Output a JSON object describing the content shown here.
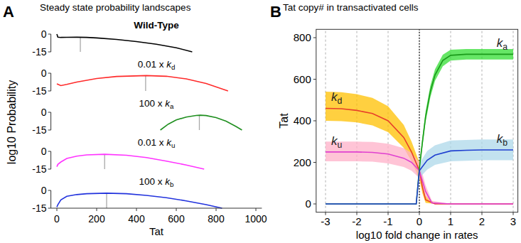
{
  "chart_data": [
    {
      "type": "line",
      "panel": "A",
      "title": "Steady state probability landscapes",
      "x_label": "Tat",
      "y_label": "log10 Probability",
      "xlim": [
        -30,
        1030
      ],
      "xticks": [
        0,
        200,
        400,
        600,
        800,
        1000
      ],
      "ylim": [
        -15,
        0
      ],
      "yticks": [
        -15,
        0
      ],
      "series": [
        {
          "name": "Wild-Type",
          "color": "#000000",
          "x": [
            0,
            5,
            20,
            50,
            100,
            150,
            200,
            300,
            400,
            500,
            600,
            680
          ],
          "values": [
            0,
            -2.5,
            -2.8,
            -2.7,
            -2.6,
            -2.8,
            -3.2,
            -4.5,
            -6.3,
            -8.6,
            -11.5,
            -15
          ],
          "mean": 118
        },
        {
          "name": "0.01 x kd",
          "color": "#ff2a2a",
          "x": [
            0,
            20,
            50,
            100,
            200,
            300,
            450,
            550,
            650,
            750,
            860
          ],
          "values": [
            -9,
            -10.5,
            -9.5,
            -7.5,
            -4.5,
            -2.8,
            -2,
            -2.6,
            -4.8,
            -8.7,
            -15
          ],
          "mean": 446
        },
        {
          "name": "100 x ka",
          "color": "#1f8f1f",
          "x": [
            520,
            560,
            600,
            650,
            700,
            720,
            750,
            800,
            850,
            900,
            930
          ],
          "values": [
            -15,
            -10,
            -6.5,
            -4,
            -2.7,
            -2.5,
            -2.8,
            -4.5,
            -7.5,
            -12,
            -15
          ],
          "mean": 716
        },
        {
          "name": "0.01 x ku",
          "color": "#ff33ff",
          "x": [
            0,
            5,
            20,
            50,
            100,
            150,
            240,
            350,
            450,
            550,
            650,
            740
          ],
          "values": [
            -13,
            -11,
            -9,
            -6,
            -4,
            -3,
            -2.5,
            -3.3,
            -5.3,
            -8.2,
            -11.5,
            -15
          ],
          "mean": 240
        },
        {
          "name": "100 x kb",
          "color": "#2233dd",
          "x": [
            0,
            5,
            20,
            50,
            100,
            150,
            250,
            350,
            450,
            550,
            650,
            750,
            830
          ],
          "values": [
            -14,
            -12,
            -8,
            -5,
            -3.5,
            -2.8,
            -2.3,
            -2.8,
            -4.2,
            -6.2,
            -8.8,
            -12,
            -15
          ],
          "mean": 250
        }
      ]
    },
    {
      "type": "line",
      "panel": "B",
      "title": "Tat copy# in transactivated cells",
      "x_label": "log10 fold change in rates",
      "y_label": "Tat",
      "xlim": [
        -3.3,
        3.15
      ],
      "xticks": [
        -3,
        -2,
        -1,
        0,
        1,
        2,
        3
      ],
      "ylim": [
        -40,
        840
      ],
      "yticks": [
        0,
        200,
        400,
        600,
        800
      ],
      "grid": true,
      "series": [
        {
          "name": "kd",
          "color": "#e8402a",
          "x": [
            -3,
            -2.5,
            -2,
            -1.5,
            -1,
            -0.5,
            -0.25,
            0,
            0.1,
            0.2,
            0.5,
            1,
            2,
            3
          ],
          "values": [
            460,
            458,
            450,
            435,
            400,
            320,
            250,
            160,
            80,
            20,
            0,
            0,
            0,
            0
          ],
          "lower": [
            400,
            398,
            392,
            378,
            345,
            270,
            205,
            120,
            50,
            5,
            0,
            0,
            0,
            0
          ],
          "upper": [
            540,
            538,
            528,
            510,
            470,
            380,
            300,
            200,
            110,
            40,
            0,
            0,
            0,
            0
          ]
        },
        {
          "name": "ku",
          "color": "#e040d0",
          "x": [
            -3,
            -2.5,
            -2,
            -1.5,
            -1,
            -0.5,
            -0.25,
            0,
            0.1,
            0.2,
            0.4,
            1,
            2,
            3
          ],
          "values": [
            250,
            250,
            250,
            248,
            240,
            220,
            200,
            160,
            110,
            60,
            5,
            0,
            0,
            0
          ],
          "lower": [
            205,
            205,
            205,
            203,
            195,
            178,
            160,
            125,
            80,
            35,
            0,
            0,
            0,
            0
          ],
          "upper": [
            300,
            300,
            300,
            298,
            290,
            268,
            245,
            200,
            145,
            90,
            15,
            0,
            0,
            0
          ]
        },
        {
          "name": "ka",
          "color": "#1a9a1a",
          "x": [
            -3,
            -2,
            -1,
            -0.5,
            -0.1,
            0,
            0.1,
            0.2,
            0.35,
            0.5,
            0.75,
            1,
            1.5,
            2,
            3
          ],
          "values": [
            0,
            0,
            0,
            0,
            0,
            170,
            300,
            420,
            540,
            620,
            690,
            715,
            720,
            720,
            720
          ],
          "lower": [
            0,
            0,
            0,
            0,
            0,
            150,
            275,
            395,
            512,
            592,
            662,
            690,
            695,
            695,
            695
          ],
          "upper": [
            0,
            0,
            0,
            0,
            0,
            190,
            325,
            445,
            568,
            648,
            718,
            742,
            745,
            745,
            745
          ]
        },
        {
          "name": "kb",
          "color": "#1f3fd0",
          "x": [
            -3,
            -2,
            -1,
            -0.5,
            -0.1,
            0,
            0.25,
            0.5,
            1,
            1.5,
            2,
            3
          ],
          "values": [
            0,
            0,
            0,
            0,
            0,
            160,
            210,
            235,
            255,
            258,
            260,
            260
          ],
          "lower": [
            0,
            0,
            0,
            0,
            0,
            125,
            165,
            188,
            205,
            208,
            210,
            210
          ],
          "upper": [
            0,
            0,
            0,
            0,
            0,
            195,
            255,
            282,
            305,
            308,
            310,
            310
          ]
        }
      ]
    }
  ]
}
